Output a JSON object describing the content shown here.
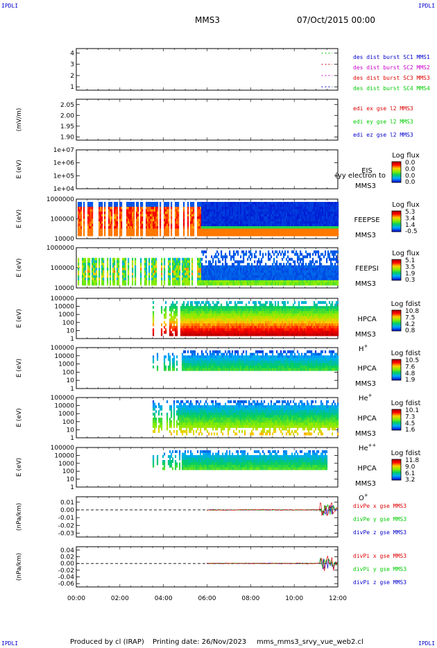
{
  "corner_labels": {
    "tl": "IPDLI",
    "tr": "IPDLI",
    "bl": "IPDLI",
    "br": "IPDLI"
  },
  "header": {
    "spacecraft": "MMS3",
    "date": "07/Oct/2015 00:00"
  },
  "footer": {
    "producer": "Produced by cl (IRAP)",
    "printing_date": "Printing date: 26/Nov/2023",
    "file_name": "mms_mms3_srvy_vue_web2.cl"
  },
  "chart_data": {
    "type": "multi-panel",
    "x_range": [
      "00:00",
      "12:00"
    ],
    "x_tick_labels": [
      "00:00",
      "02:00",
      "04:00",
      "06:00",
      "08:00",
      "10:00",
      "12:00"
    ],
    "panels": [
      {
        "id": "burst",
        "type": "line",
        "ylabel": "",
        "yticks": [
          "1",
          "2",
          "3",
          "4"
        ],
        "ylim": [
          0.7,
          4.4
        ],
        "legend": [
          {
            "text": "des dist burst SC1 MMS1",
            "color": "#0000cc"
          },
          {
            "text": "des dist burst SC2 MMS2",
            "color": "#cc00cc"
          },
          {
            "text": "des dist burst SC3 MMS3",
            "color": "#dd0000"
          },
          {
            "text": "des dist burst SC4 MMS4",
            "color": "#00cc00"
          }
        ],
        "series": [
          {
            "level": 4,
            "color": "#00cc00",
            "x_start": "11:15",
            "x_end": "11:45"
          },
          {
            "level": 3,
            "color": "#dd0000",
            "x_start": "11:15",
            "x_end": "11:45"
          },
          {
            "level": 2,
            "color": "#cc00cc",
            "x_start": "11:15",
            "x_end": "11:45"
          },
          {
            "level": 1,
            "color": "#0000cc",
            "x_start": "11:15",
            "x_end": "11:45"
          }
        ]
      },
      {
        "id": "edi",
        "type": "line",
        "ylabel": "(mV/m)",
        "yticks": [
          "1.90",
          "1.95",
          "2.00",
          "2.05"
        ],
        "ylim": [
          1.885,
          2.075
        ],
        "legend": [
          {
            "text": "edi ex gse l2 MMS3",
            "color": "#dd0000"
          },
          {
            "text": "edi ey gse l2 MMS3",
            "color": "#00cc00"
          },
          {
            "text": "edi ez gse l2 MMS3",
            "color": "#0000cc"
          }
        ]
      },
      {
        "id": "eis",
        "type": "heatmap",
        "ylabel": "E (eV)",
        "yticks": [
          "1e+04",
          "1e+05",
          "1e+06",
          "1e+07"
        ],
        "scale": "log",
        "instrument": "EIS",
        "subtitle": "MMS3",
        "overlay": "(yy electron to",
        "colorbar": {
          "title": "Log flux",
          "ticks": [
            "0.0",
            "0.0",
            "0.0",
            "0.0"
          ]
        }
      },
      {
        "id": "feepse",
        "type": "heatmap",
        "ylabel": "E (eV)",
        "yticks": [
          "10000",
          "100000",
          "1000000"
        ],
        "scale": "log",
        "instrument": "FEEPSE",
        "subtitle": "MMS3",
        "colorbar": {
          "title": "Log flux",
          "ticks": [
            "5.3",
            "3.4",
            "1.4",
            "-0.5"
          ]
        },
        "data_start": "00:00",
        "sparse_until": "05:40",
        "dense_until": "12:00"
      },
      {
        "id": "feepsi",
        "type": "heatmap",
        "ylabel": "E (eV)",
        "yticks": [
          "10000",
          "100000",
          "1000000"
        ],
        "scale": "log",
        "instrument": "FEEPSI",
        "subtitle": "MMS3",
        "colorbar": {
          "title": "Log flux",
          "ticks": [
            "5.1",
            "3.5",
            "1.9",
            "0.3"
          ]
        },
        "data_start": "00:00",
        "sparse_until": "05:40",
        "dense_until": "12:00"
      },
      {
        "id": "hpca_h",
        "type": "heatmap",
        "ylabel": "E (eV)",
        "yticks": [
          "1",
          "10",
          "100",
          "1000",
          "10000",
          "100000"
        ],
        "scale": "log",
        "instrument": "HPCA",
        "subtitle": "MMS3",
        "species": "H",
        "species_sup": "+",
        "colorbar": {
          "title": "Log fdist",
          "ticks": [
            "10.8",
            "7.5",
            "4.2",
            "0.8"
          ]
        },
        "data_start": "03:30",
        "dense_from": "04:45",
        "dense_until": "12:00"
      },
      {
        "id": "hpca_he",
        "type": "heatmap",
        "ylabel": "E (eV)",
        "yticks": [
          "1",
          "10",
          "100",
          "1000",
          "10000",
          "100000"
        ],
        "scale": "log",
        "instrument": "HPCA",
        "subtitle": "MMS3",
        "species": "He",
        "species_sup": "+",
        "colorbar": {
          "title": "Log fdist",
          "ticks": [
            "10.5",
            "7.6",
            "4.8",
            "1.9"
          ]
        },
        "data_start": "03:30",
        "dense_from": "04:50",
        "dense_until": "12:00"
      },
      {
        "id": "hpca_hepp",
        "type": "heatmap",
        "ylabel": "E (eV)",
        "yticks": [
          "1",
          "10",
          "100",
          "1000",
          "10000",
          "100000"
        ],
        "scale": "log",
        "instrument": "HPCA",
        "subtitle": "MMS3",
        "species": "He",
        "species_sup": "++",
        "colorbar": {
          "title": "Log fdist",
          "ticks": [
            "10.1",
            "7.3",
            "4.5",
            "1.6"
          ]
        },
        "data_start": "03:30",
        "dense_from": "04:40",
        "dense_until": "12:00"
      },
      {
        "id": "hpca_o",
        "type": "heatmap",
        "ylabel": "E (eV)",
        "yticks": [
          "1",
          "10",
          "100",
          "1000",
          "10000",
          "100000"
        ],
        "scale": "log",
        "instrument": "HPCA",
        "subtitle": "MMS3",
        "species": "O",
        "species_sup": "+",
        "colorbar": {
          "title": "Log fdist",
          "ticks": [
            "11.8",
            "9.0",
            "6.1",
            "3.2"
          ]
        },
        "data_start": "03:30",
        "dense_from": "04:50",
        "dense_until": "11:30"
      },
      {
        "id": "divpe",
        "type": "line",
        "ylabel": "(nPa/km)",
        "yticks": [
          "-0.03",
          "-0.02",
          "-0.01",
          "0.00",
          "0.01"
        ],
        "ylim": [
          -0.035,
          0.017
        ],
        "legend": [
          {
            "text": "divPe x gse MMS3",
            "color": "#dd0000"
          },
          {
            "text": "divPe y gse MMS3",
            "color": "#00cc00"
          },
          {
            "text": "divPe z gse MMS3",
            "color": "#0000cc"
          }
        ],
        "data_start": "06:00",
        "data_end": "12:00",
        "zero_line": true
      },
      {
        "id": "divpi",
        "type": "line",
        "ylabel": "(nPa/km)",
        "yticks": [
          "-0.06",
          "-0.04",
          "-0.02",
          "0.00",
          "0.02",
          "0.04"
        ],
        "ylim": [
          -0.07,
          0.05
        ],
        "legend": [
          {
            "text": "divPi x gse MMS3",
            "color": "#dd0000"
          },
          {
            "text": "divPi y gse MMS3",
            "color": "#00cc00"
          },
          {
            "text": "divPi z gse MMS3",
            "color": "#0000cc"
          }
        ],
        "data_start": "06:00",
        "data_end": "12:00",
        "zero_line": true
      }
    ]
  }
}
